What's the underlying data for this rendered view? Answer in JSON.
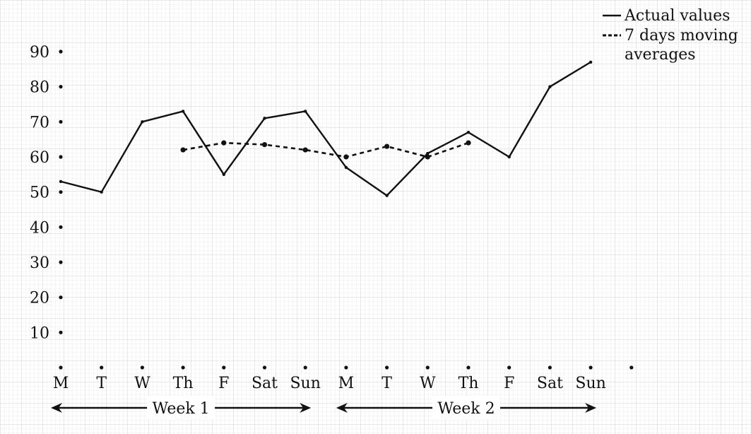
{
  "chart_data": {
    "type": "line",
    "title": "",
    "xlabel": "",
    "ylabel": "",
    "x": [
      "M",
      "T",
      "W",
      "Th",
      "F",
      "Sat",
      "Sun",
      "M",
      "T",
      "W",
      "Th",
      "F",
      "Sat",
      "Sun"
    ],
    "y_ticks": [
      10,
      20,
      30,
      40,
      50,
      60,
      70,
      80,
      90
    ],
    "ylim": [
      0,
      90
    ],
    "grid": true,
    "legend_position": "top-right",
    "series": [
      {
        "name": "Actual values",
        "style": "solid",
        "values": [
          53,
          50,
          70,
          73,
          55,
          71,
          73,
          57,
          49,
          61,
          67,
          60,
          80,
          87
        ]
      },
      {
        "name": "7 days moving averages",
        "legend_lines": [
          "7 days moving",
          "averages"
        ],
        "style": "dashed",
        "values": [
          null,
          null,
          null,
          62,
          64,
          63.5,
          62,
          60,
          63,
          60,
          64,
          null,
          null,
          null
        ]
      }
    ],
    "week_annotations": [
      {
        "label": "Week 1",
        "from_index": 0,
        "to_index": 6
      },
      {
        "label": "Week 2",
        "from_index": 7,
        "to_index": 13
      }
    ],
    "colors": {
      "line": "#111111",
      "grid_minor": "#e4e4e4",
      "grid_major": "#cfcfcf"
    }
  }
}
